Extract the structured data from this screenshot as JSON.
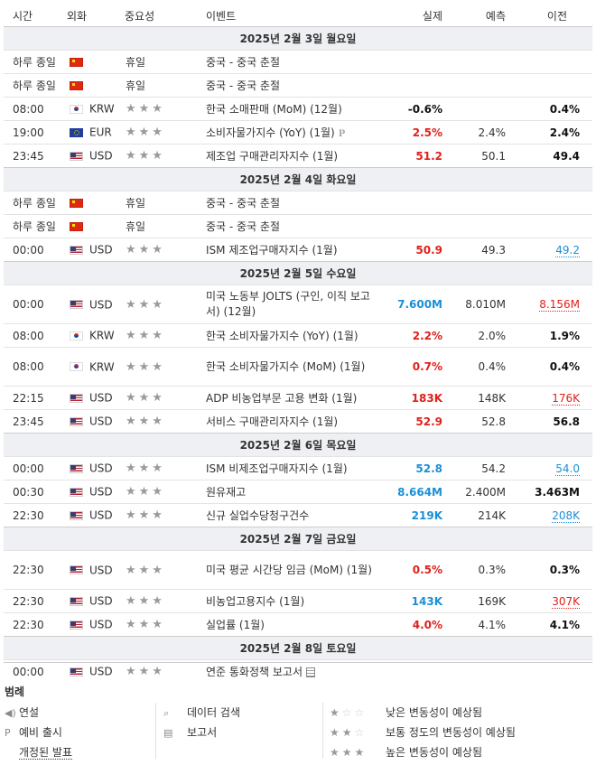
{
  "headers": {
    "time": "시간",
    "currency": "외화",
    "importance": "중요성",
    "event": "이벤트",
    "actual": "실제",
    "forecast": "예측",
    "previous": "이전"
  },
  "stars": "★★★",
  "days": [
    {
      "label": "2025년 2월 3일 월요일",
      "rows": [
        {
          "time": "하루 종일",
          "flag": "cn",
          "cur": "",
          "holiday": "휴일",
          "event": "중국 - 중국 춘절"
        },
        {
          "time": "하루 종일",
          "flag": "cn",
          "cur": "",
          "holiday": "휴일",
          "event": "중국 - 중국 춘절"
        },
        {
          "time": "08:00",
          "flag": "kr",
          "cur": "KRW",
          "event": "한국 소매판매 (MoM) (12월)",
          "actual": "-0.6%",
          "actual_color": "black",
          "forecast": "",
          "previous": "0.4%",
          "prev_style": "black"
        },
        {
          "time": "19:00",
          "flag": "eu",
          "cur": "EUR",
          "event": "소비자물가지수 (YoY) (1월)",
          "p": "P",
          "actual": "2.5%",
          "actual_color": "red",
          "forecast": "2.4%",
          "previous": "2.4%",
          "prev_style": "black"
        },
        {
          "time": "23:45",
          "flag": "us",
          "cur": "USD",
          "event": "제조업 구매관리자지수 (1월)",
          "actual": "51.2",
          "actual_color": "red",
          "forecast": "50.1",
          "previous": "49.4",
          "prev_style": "black"
        }
      ]
    },
    {
      "label": "2025년 2월 4일 화요일",
      "rows": [
        {
          "time": "하루 종일",
          "flag": "cn",
          "cur": "",
          "holiday": "휴일",
          "event": "중국 - 중국 춘절"
        },
        {
          "time": "하루 종일",
          "flag": "cn",
          "cur": "",
          "holiday": "휴일",
          "event": "중국 - 중국 춘절"
        },
        {
          "time": "00:00",
          "flag": "us",
          "cur": "USD",
          "event": "ISM 제조업구매자지수 (1월)",
          "actual": "50.9",
          "actual_color": "red",
          "forecast": "49.3",
          "previous": "49.2",
          "prev_style": "blue"
        }
      ]
    },
    {
      "label": "2025년 2월 5일 수요일",
      "rows": [
        {
          "time": "00:00",
          "flag": "us",
          "cur": "USD",
          "event": "미국 노동부 JOLTS (구인, 이직 보고서) (12월)",
          "tall": true,
          "actual": "7.600M",
          "actual_color": "blue",
          "forecast": "8.010M",
          "previous": "8.156M",
          "prev_style": "red"
        },
        {
          "time": "08:00",
          "flag": "kr",
          "cur": "KRW",
          "event": "한국 소비자물가지수 (YoY) (1월)",
          "actual": "2.2%",
          "actual_color": "red",
          "forecast": "2.0%",
          "previous": "1.9%",
          "prev_style": "black"
        },
        {
          "time": "08:00",
          "flag": "kr",
          "cur": "KRW",
          "event": "한국 소비자물가지수 (MoM) (1월)",
          "tall": true,
          "actual": "0.7%",
          "actual_color": "red",
          "forecast": "0.4%",
          "previous": "0.4%",
          "prev_style": "black"
        },
        {
          "time": "22:15",
          "flag": "us",
          "cur": "USD",
          "event": "ADP 비농업부문 고용 변화 (1월)",
          "actual": "183K",
          "actual_color": "red",
          "forecast": "148K",
          "previous": "176K",
          "prev_style": "red"
        },
        {
          "time": "23:45",
          "flag": "us",
          "cur": "USD",
          "event": "서비스 구매관리자지수 (1월)",
          "actual": "52.9",
          "actual_color": "red",
          "forecast": "52.8",
          "previous": "56.8",
          "prev_style": "black"
        }
      ]
    },
    {
      "label": "2025년 2월 6일 목요일",
      "rows": [
        {
          "time": "00:00",
          "flag": "us",
          "cur": "USD",
          "event": "ISM 비제조업구매자지수 (1월)",
          "actual": "52.8",
          "actual_color": "blue",
          "forecast": "54.2",
          "previous": "54.0",
          "prev_style": "blue"
        },
        {
          "time": "00:30",
          "flag": "us",
          "cur": "USD",
          "event": "원유재고",
          "actual": "8.664M",
          "actual_color": "blue",
          "forecast": "2.400M",
          "previous": "3.463M",
          "prev_style": "black"
        },
        {
          "time": "22:30",
          "flag": "us",
          "cur": "USD",
          "event": "신규 실업수당청구건수",
          "actual": "219K",
          "actual_color": "blue",
          "forecast": "214K",
          "previous": "208K",
          "prev_style": "blue"
        }
      ]
    },
    {
      "label": "2025년 2월 7일 금요일",
      "rows": [
        {
          "time": "22:30",
          "flag": "us",
          "cur": "USD",
          "event": "미국 평균 시간당 임금 (MoM) (1월)",
          "tall": true,
          "actual": "0.5%",
          "actual_color": "red",
          "forecast": "0.3%",
          "previous": "0.3%",
          "prev_style": "black"
        },
        {
          "time": "22:30",
          "flag": "us",
          "cur": "USD",
          "event": "비농업고용지수 (1월)",
          "actual": "143K",
          "actual_color": "blue",
          "forecast": "169K",
          "previous": "307K",
          "prev_style": "red"
        },
        {
          "time": "22:30",
          "flag": "us",
          "cur": "USD",
          "event": "실업률 (1월)",
          "actual": "4.0%",
          "actual_color": "red",
          "forecast": "4.1%",
          "previous": "4.1%",
          "prev_style": "black"
        }
      ]
    },
    {
      "label": "2025년 2월 8일 토요일",
      "rows": [
        {
          "time": "00:00",
          "flag": "us",
          "cur": "USD",
          "event": "연준 통화정책 보고서",
          "doc": true,
          "actual": "",
          "forecast": "",
          "previous": ""
        }
      ]
    }
  ],
  "legend": {
    "title": "범례",
    "col1": [
      {
        "icon": "speaker-icon",
        "glyph": "◀)",
        "label": "연설"
      },
      {
        "icon": "p-icon",
        "glyph": "P",
        "label": "예비 출시"
      },
      {
        "icon": "",
        "glyph": "",
        "label": "개정된 발표"
      }
    ],
    "col2": [
      {
        "icon": "search-doc-icon",
        "glyph": "⌕",
        "label": "데이터 검색"
      },
      {
        "icon": "report-icon",
        "glyph": "▤",
        "label": "보고서"
      }
    ],
    "col3": [
      {
        "stars_on": 1,
        "label": "낮은 변동성이 예상됨"
      },
      {
        "stars_on": 2,
        "label": "보통 정도의 변동성이 예상됨"
      },
      {
        "stars_on": 3,
        "label": "높은 변동성이 예상됨"
      }
    ]
  }
}
